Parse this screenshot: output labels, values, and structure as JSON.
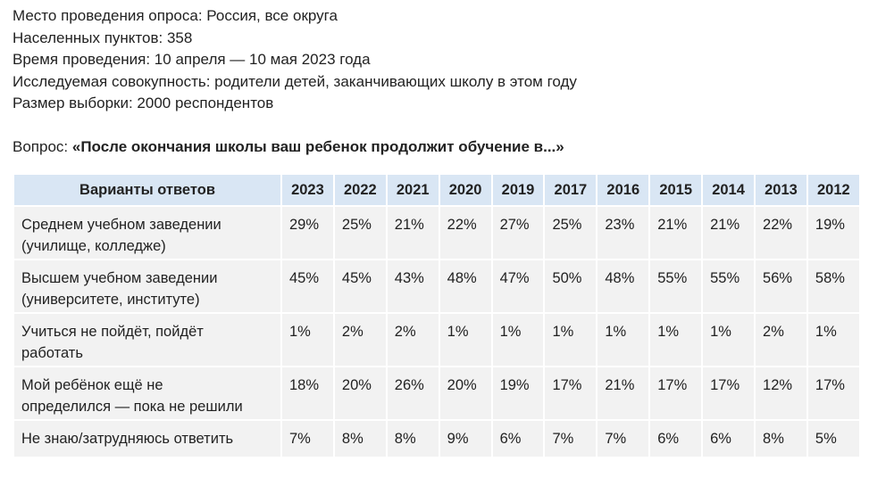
{
  "info": [
    "Место проведения опроса: Россия, все округа",
    "Населенных пунктов: 358",
    "Время проведения: 10 апреля — 10 мая 2023 года",
    "Исследуемая совокупность: родители детей, заканчивающих школу в этом году",
    "Размер выборки: 2000 респондентов"
  ],
  "question": {
    "prefix": "Вопрос: ",
    "text": "«После окончания школы ваш ребенок продолжит обучение в...»"
  },
  "table": {
    "header_label": "Варианты ответов",
    "years": [
      "2023",
      "2022",
      "2021",
      "2020",
      "2019",
      "2017",
      "2016",
      "2015",
      "2014",
      "2013",
      "2012"
    ],
    "rows": [
      {
        "label_lines": [
          "Среднем учебном заведении",
          "(училище, колледже)"
        ],
        "values": [
          "29%",
          "25%",
          "21%",
          "22%",
          "27%",
          "25%",
          "23%",
          "21%",
          "21%",
          "22%",
          "19%"
        ]
      },
      {
        "label_lines": [
          "Высшем учебном заведении",
          "(университете, институте)"
        ],
        "values": [
          "45%",
          "45%",
          "43%",
          "48%",
          "47%",
          "50%",
          "48%",
          "55%",
          "55%",
          "56%",
          "58%"
        ]
      },
      {
        "label_lines": [
          "Учиться не пойдёт, пойдёт",
          "работать"
        ],
        "values": [
          "1%",
          "2%",
          "2%",
          "1%",
          "1%",
          "1%",
          "1%",
          "1%",
          "1%",
          "2%",
          "1%"
        ]
      },
      {
        "label_lines": [
          "Мой ребёнок ещё не",
          "определился — пока не решили"
        ],
        "values": [
          "18%",
          "20%",
          "26%",
          "20%",
          "19%",
          "17%",
          "21%",
          "17%",
          "17%",
          "12%",
          "17%"
        ]
      },
      {
        "label_lines": [
          "Не знаю/затрудняюсь ответить"
        ],
        "values": [
          "7%",
          "8%",
          "8%",
          "9%",
          "6%",
          "7%",
          "7%",
          "6%",
          "6%",
          "8%",
          "5%"
        ]
      }
    ]
  }
}
